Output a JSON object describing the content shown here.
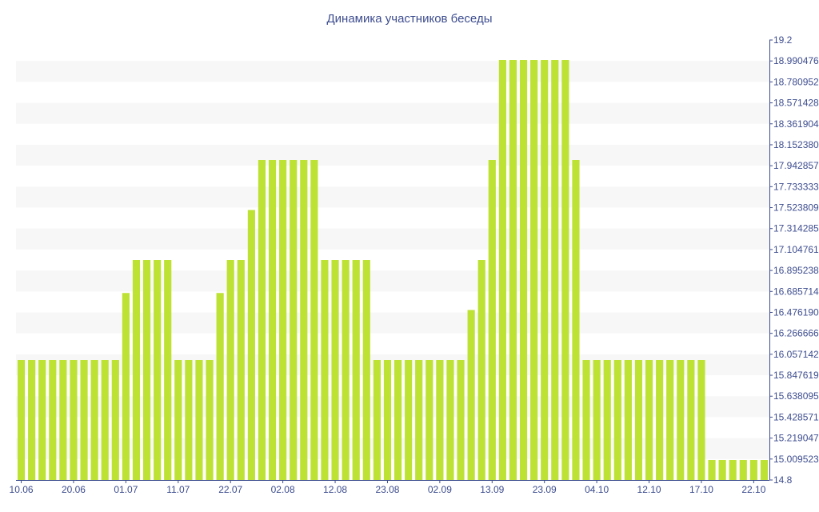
{
  "chart_data": {
    "type": "bar",
    "title": "Динамика участников беседы",
    "xlabel": "",
    "ylabel": "",
    "ylim": [
      14.8,
      19.2
    ],
    "grid": true,
    "legend": "none",
    "y_ticks": [
      "19.2",
      "18.990476",
      "18.780952",
      "18.571428",
      "18.361904",
      "18.152380",
      "17.942857",
      "17.733333",
      "17.523809",
      "17.314285",
      "17.104761",
      "16.895238",
      "16.685714",
      "16.476190",
      "16.266666",
      "16.057142",
      "15.847619",
      "15.638095",
      "15.428571",
      "15.219047",
      "15.009523",
      "14.8"
    ],
    "x_tick_labels": [
      "10.06",
      "20.06",
      "01.07",
      "11.07",
      "22.07",
      "02.08",
      "12.08",
      "23.08",
      "02.09",
      "13.09",
      "23.09",
      "04.10",
      "12.10",
      "17.10",
      "22.10"
    ],
    "x_tick_index": [
      0,
      5,
      10,
      15,
      20,
      25,
      30,
      35,
      40,
      45,
      50,
      55,
      60,
      65,
      70
    ],
    "values": [
      16,
      16,
      16,
      16,
      16,
      16,
      16,
      16,
      16,
      16,
      16.67,
      17,
      17,
      17,
      17,
      16,
      16,
      16,
      16,
      16.67,
      17,
      17,
      17.5,
      18,
      18,
      18,
      18,
      18,
      18,
      17,
      17,
      17,
      17,
      17,
      16,
      16,
      16,
      16,
      16,
      16,
      16,
      16,
      16,
      16.5,
      17,
      18,
      19,
      19,
      19,
      19,
      19,
      19,
      19,
      18,
      16,
      16,
      16,
      16,
      16,
      16,
      16,
      16,
      16,
      16,
      16,
      16,
      15,
      15,
      15,
      15,
      15,
      15
    ],
    "colors": {
      "bar": "#bde234",
      "band": "#f7f7f7",
      "axis": "#3d4d8f",
      "text": "#3d4d8f"
    }
  }
}
